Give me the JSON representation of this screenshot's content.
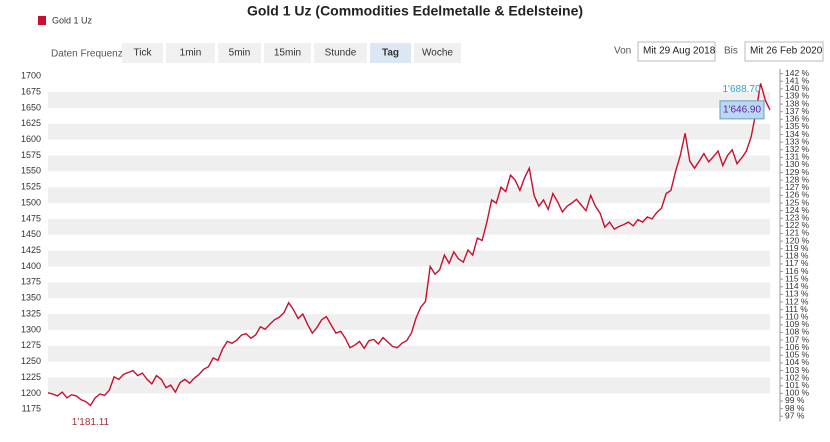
{
  "controls": {
    "label": "Daten Frequenz",
    "buttons": [
      "Tick",
      "1min",
      "5min",
      "15min",
      "Stunde",
      "Tag",
      "Woche"
    ],
    "active": "Tag",
    "from_label": "Von",
    "from": "Mit 29 Aug 2018",
    "to_label": "Bis",
    "to": "Mit 26 Feb 2020"
  },
  "chart_data": {
    "type": "line",
    "title": "Gold 1 Uz (Commodities Edelmetalle & Edelsteine)",
    "series": [
      {
        "name": "Gold 1 Uz",
        "color": "#c8102e",
        "values": [
          1201,
          1199,
          1196,
          1202,
          1193,
          1198,
          1196,
          1190,
          1187,
          1181.11,
          1193,
          1199,
          1197,
          1205,
          1226,
          1222,
          1230,
          1233,
          1236,
          1228,
          1232,
          1222,
          1215,
          1228,
          1222,
          1209,
          1213,
          1202,
          1217,
          1222,
          1216,
          1224,
          1230,
          1238,
          1242,
          1256,
          1252,
          1270,
          1282,
          1279,
          1284,
          1292,
          1294,
          1287,
          1292,
          1305,
          1301,
          1309,
          1316,
          1320,
          1327,
          1343,
          1332,
          1318,
          1325,
          1309,
          1295,
          1304,
          1316,
          1321,
          1308,
          1295,
          1298,
          1287,
          1272,
          1276,
          1282,
          1271,
          1283,
          1285,
          1278,
          1288,
          1281,
          1274,
          1272,
          1279,
          1283,
          1295,
          1319,
          1336,
          1345,
          1400,
          1388,
          1395,
          1418,
          1405,
          1423,
          1412,
          1407,
          1426,
          1418,
          1445,
          1441,
          1470,
          1505,
          1500,
          1525,
          1518,
          1544,
          1536,
          1520,
          1540,
          1555,
          1512,
          1495,
          1505,
          1490,
          1515,
          1502,
          1486,
          1495,
          1500,
          1506,
          1497,
          1488,
          1512,
          1495,
          1484,
          1462,
          1470,
          1459,
          1463,
          1466,
          1470,
          1464,
          1474,
          1470,
          1478,
          1475,
          1485,
          1492,
          1515,
          1520,
          1550,
          1575,
          1610,
          1566,
          1555,
          1566,
          1578,
          1565,
          1573,
          1582,
          1559,
          1575,
          1584,
          1562,
          1571,
          1582,
          1604,
          1642,
          1688.7,
          1662,
          1646.9
        ],
        "value_labels": [
          null,
          null,
          null,
          null,
          null,
          null,
          null,
          null,
          null,
          "1'181.11",
          null,
          null,
          null,
          null,
          null,
          null,
          null,
          null,
          null,
          null,
          null,
          null,
          null,
          null,
          null,
          null,
          null,
          null,
          null,
          null,
          null,
          null,
          null,
          null,
          null,
          null,
          null,
          null,
          null,
          null,
          null,
          null,
          null,
          null,
          null,
          null,
          null,
          null,
          null,
          null,
          null,
          null,
          null,
          null,
          null,
          null,
          null,
          null,
          null,
          null,
          null,
          null,
          null,
          null,
          null,
          null,
          null,
          null,
          null,
          null,
          null,
          null,
          null,
          null,
          null,
          null,
          null,
          null,
          null,
          null,
          null,
          null,
          null,
          null,
          null,
          null,
          null,
          null,
          null,
          null,
          null,
          null,
          null,
          null,
          null,
          null,
          null,
          null,
          null,
          null,
          null,
          null,
          null,
          null,
          null,
          null,
          null,
          null,
          null,
          null,
          null,
          null,
          null,
          null,
          null,
          null,
          null,
          null,
          null,
          null,
          null,
          null,
          null,
          null,
          null,
          null,
          null,
          null,
          null,
          null,
          null,
          null,
          null,
          null,
          null,
          null,
          null,
          null,
          null,
          null,
          null,
          null,
          null,
          null,
          null,
          null,
          null,
          null,
          null,
          null,
          null,
          "1'688.70",
          null,
          "1'646.90"
        ]
      }
    ],
    "ylim": [
      1165,
      1705
    ],
    "yticks": [
      1175,
      1200,
      1225,
      1250,
      1275,
      1300,
      1325,
      1350,
      1375,
      1400,
      1425,
      1450,
      1475,
      1500,
      1525,
      1550,
      1575,
      1600,
      1625,
      1650,
      1675,
      1700
    ],
    "y2lim": [
      97.08,
      142.08
    ],
    "y2ticks": [
      {
        "value": 97,
        "label": "97 %"
      },
      {
        "value": 98,
        "label": "98 %"
      },
      {
        "value": 99,
        "label": "99 %"
      },
      {
        "value": 100,
        "label": "100 %"
      },
      {
        "value": 101,
        "label": "101 %"
      },
      {
        "value": 102,
        "label": "102 %"
      },
      {
        "value": 103,
        "label": "103 %"
      },
      {
        "value": 104,
        "label": "104 %"
      },
      {
        "value": 105,
        "label": "105 %"
      },
      {
        "value": 106,
        "label": "106 %"
      },
      {
        "value": 107,
        "label": "107 %"
      },
      {
        "value": 108,
        "label": "108 %"
      },
      {
        "value": 109,
        "label": "109 %"
      },
      {
        "value": 110,
        "label": "110 %"
      },
      {
        "value": 111,
        "label": "111 %"
      },
      {
        "value": 112,
        "label": "112 %"
      },
      {
        "value": 113,
        "label": "113 %"
      },
      {
        "value": 114,
        "label": "114 %"
      },
      {
        "value": 115,
        "label": "115 %"
      },
      {
        "value": 116,
        "label": "116 %"
      },
      {
        "value": 117,
        "label": "117 %"
      },
      {
        "value": 118,
        "label": "118 %"
      },
      {
        "value": 119,
        "label": "119 %"
      },
      {
        "value": 120,
        "label": "120 %"
      },
      {
        "value": 121,
        "label": "121 %"
      },
      {
        "value": 122,
        "label": "122 %"
      },
      {
        "value": 123,
        "label": "123 %"
      },
      {
        "value": 124,
        "label": "124 %"
      },
      {
        "value": 125,
        "label": "125 %"
      },
      {
        "value": 126,
        "label": "126 %"
      },
      {
        "value": 127,
        "label": "127 %"
      },
      {
        "value": 128,
        "label": "128 %"
      },
      {
        "value": 129,
        "label": "129 %"
      },
      {
        "value": 130,
        "label": "130 %"
      },
      {
        "value": 131,
        "label": "131 %"
      },
      {
        "value": 132,
        "label": "132 %"
      },
      {
        "value": 133,
        "label": "133 %"
      },
      {
        "value": 134,
        "label": "134 %"
      },
      {
        "value": 135,
        "label": "135 %"
      },
      {
        "value": 136,
        "label": "136 %"
      },
      {
        "value": 137,
        "label": "137 %"
      },
      {
        "value": 138,
        "label": "138 %"
      },
      {
        "value": 139,
        "label": "139 %"
      },
      {
        "value": 140,
        "label": "140 %"
      },
      {
        "value": 141,
        "label": "141 %"
      },
      {
        "value": 142,
        "label": "142 %"
      }
    ],
    "grid": true,
    "legend": "top-left"
  }
}
